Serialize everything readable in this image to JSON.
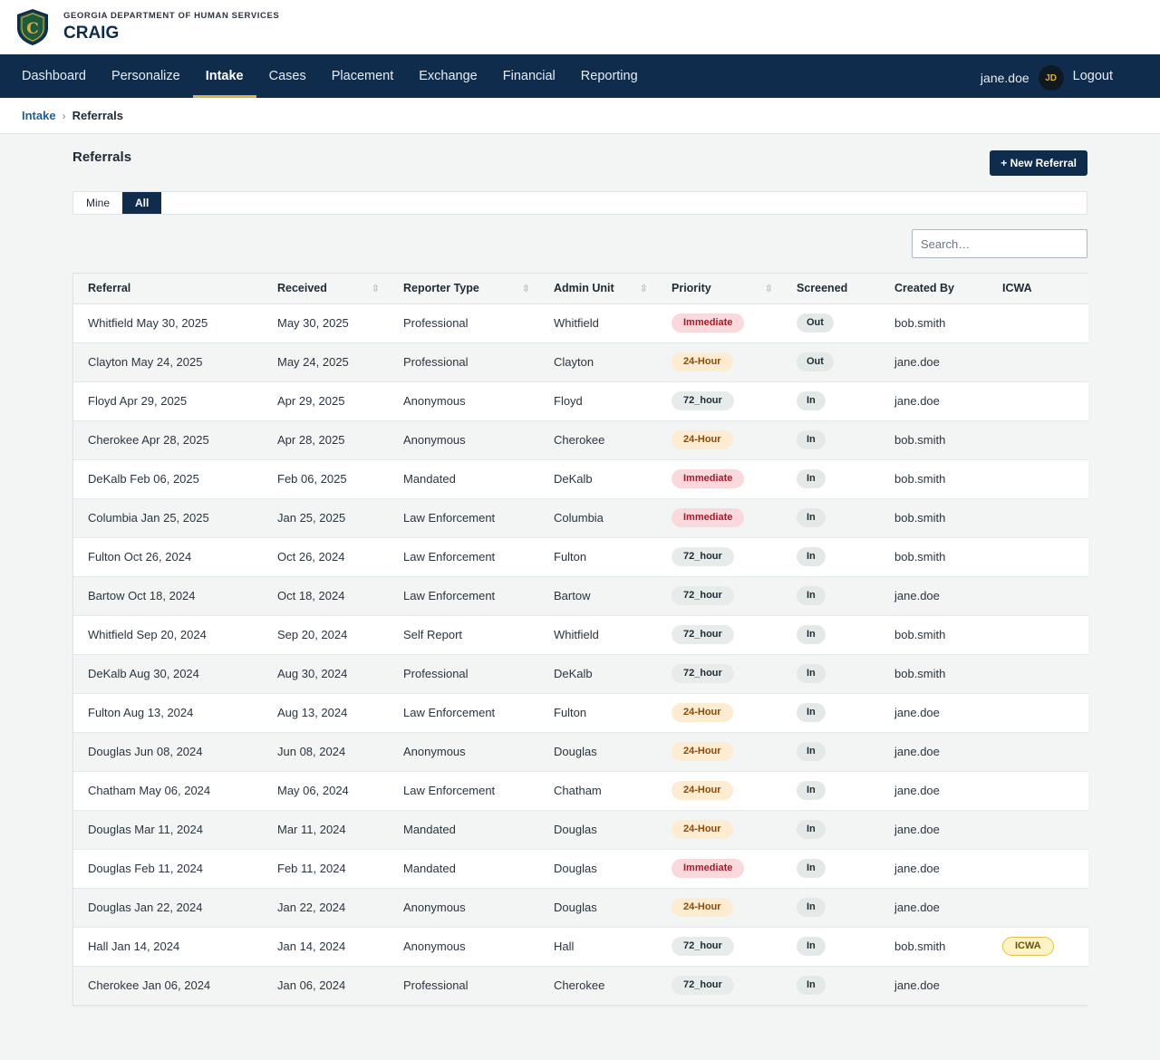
{
  "header": {
    "agency": "GEORGIA DEPARTMENT OF HUMAN SERVICES",
    "app_name": "CRAIG",
    "logo_letter": "C"
  },
  "nav": {
    "items": [
      "Dashboard",
      "Personalize",
      "Intake",
      "Cases",
      "Placement",
      "Exchange",
      "Financial",
      "Reporting"
    ],
    "active": "Intake",
    "username": "jane.doe",
    "avatar_initials": "JD",
    "logout": "Logout"
  },
  "breadcrumb": {
    "parent": "Intake",
    "separator": "›",
    "current": "Referrals"
  },
  "page": {
    "title": "Referrals",
    "new_button": "+ New Referral",
    "tabs": [
      "Mine",
      "All"
    ],
    "active_tab": "All",
    "search_placeholder": "Search…"
  },
  "table": {
    "columns": [
      "Referral",
      "Received",
      "Reporter Type",
      "Admin Unit",
      "Priority",
      "Screened",
      "Created By",
      "ICWA"
    ],
    "sortable_icon": "⇳",
    "rows": [
      {
        "referral": "Whitfield May 30, 2025",
        "received": "May 30, 2025",
        "reporter_type": "Professional",
        "admin_unit": "Whitfield",
        "priority": "Immediate",
        "screened": "Out",
        "created_by": "bob.smith",
        "icwa": ""
      },
      {
        "referral": "Clayton May 24, 2025",
        "received": "May 24, 2025",
        "reporter_type": "Professional",
        "admin_unit": "Clayton",
        "priority": "24-Hour",
        "screened": "Out",
        "created_by": "jane.doe",
        "icwa": ""
      },
      {
        "referral": "Floyd Apr 29, 2025",
        "received": "Apr 29, 2025",
        "reporter_type": "Anonymous",
        "admin_unit": "Floyd",
        "priority": "72_hour",
        "screened": "In",
        "created_by": "jane.doe",
        "icwa": ""
      },
      {
        "referral": "Cherokee Apr 28, 2025",
        "received": "Apr 28, 2025",
        "reporter_type": "Anonymous",
        "admin_unit": "Cherokee",
        "priority": "24-Hour",
        "screened": "In",
        "created_by": "bob.smith",
        "icwa": ""
      },
      {
        "referral": "DeKalb Feb 06, 2025",
        "received": "Feb 06, 2025",
        "reporter_type": "Mandated",
        "admin_unit": "DeKalb",
        "priority": "Immediate",
        "screened": "In",
        "created_by": "bob.smith",
        "icwa": ""
      },
      {
        "referral": "Columbia Jan 25, 2025",
        "received": "Jan 25, 2025",
        "reporter_type": "Law Enforcement",
        "admin_unit": "Columbia",
        "priority": "Immediate",
        "screened": "In",
        "created_by": "bob.smith",
        "icwa": ""
      },
      {
        "referral": "Fulton Oct 26, 2024",
        "received": "Oct 26, 2024",
        "reporter_type": "Law Enforcement",
        "admin_unit": "Fulton",
        "priority": "72_hour",
        "screened": "In",
        "created_by": "bob.smith",
        "icwa": ""
      },
      {
        "referral": "Bartow Oct 18, 2024",
        "received": "Oct 18, 2024",
        "reporter_type": "Law Enforcement",
        "admin_unit": "Bartow",
        "priority": "72_hour",
        "screened": "In",
        "created_by": "jane.doe",
        "icwa": ""
      },
      {
        "referral": "Whitfield Sep 20, 2024",
        "received": "Sep 20, 2024",
        "reporter_type": "Self Report",
        "admin_unit": "Whitfield",
        "priority": "72_hour",
        "screened": "In",
        "created_by": "bob.smith",
        "icwa": ""
      },
      {
        "referral": "DeKalb Aug 30, 2024",
        "received": "Aug 30, 2024",
        "reporter_type": "Professional",
        "admin_unit": "DeKalb",
        "priority": "72_hour",
        "screened": "In",
        "created_by": "bob.smith",
        "icwa": ""
      },
      {
        "referral": "Fulton Aug 13, 2024",
        "received": "Aug 13, 2024",
        "reporter_type": "Law Enforcement",
        "admin_unit": "Fulton",
        "priority": "24-Hour",
        "screened": "In",
        "created_by": "jane.doe",
        "icwa": ""
      },
      {
        "referral": "Douglas Jun 08, 2024",
        "received": "Jun 08, 2024",
        "reporter_type": "Anonymous",
        "admin_unit": "Douglas",
        "priority": "24-Hour",
        "screened": "In",
        "created_by": "jane.doe",
        "icwa": ""
      },
      {
        "referral": "Chatham May 06, 2024",
        "received": "May 06, 2024",
        "reporter_type": "Law Enforcement",
        "admin_unit": "Chatham",
        "priority": "24-Hour",
        "screened": "In",
        "created_by": "jane.doe",
        "icwa": ""
      },
      {
        "referral": "Douglas Mar 11, 2024",
        "received": "Mar 11, 2024",
        "reporter_type": "Mandated",
        "admin_unit": "Douglas",
        "priority": "24-Hour",
        "screened": "In",
        "created_by": "jane.doe",
        "icwa": ""
      },
      {
        "referral": "Douglas Feb 11, 2024",
        "received": "Feb 11, 2024",
        "reporter_type": "Mandated",
        "admin_unit": "Douglas",
        "priority": "Immediate",
        "screened": "In",
        "created_by": "jane.doe",
        "icwa": ""
      },
      {
        "referral": "Douglas Jan 22, 2024",
        "received": "Jan 22, 2024",
        "reporter_type": "Anonymous",
        "admin_unit": "Douglas",
        "priority": "24-Hour",
        "screened": "In",
        "created_by": "jane.doe",
        "icwa": ""
      },
      {
        "referral": "Hall Jan 14, 2024",
        "received": "Jan 14, 2024",
        "reporter_type": "Anonymous",
        "admin_unit": "Hall",
        "priority": "72_hour",
        "screened": "In",
        "created_by": "bob.smith",
        "icwa": "ICWA"
      },
      {
        "referral": "Cherokee Jan 06, 2024",
        "received": "Jan 06, 2024",
        "reporter_type": "Professional",
        "admin_unit": "Cherokee",
        "priority": "72_hour",
        "screened": "In",
        "created_by": "jane.doe",
        "icwa": ""
      }
    ]
  },
  "colors": {
    "navy": "#0f2c4d",
    "gold_accent": "#d6b04a",
    "immediate_bg": "#f9d9dc",
    "immediate_text": "#a61b29",
    "hour24_bg": "#fdecd2",
    "hour24_text": "#8a4b0a"
  }
}
